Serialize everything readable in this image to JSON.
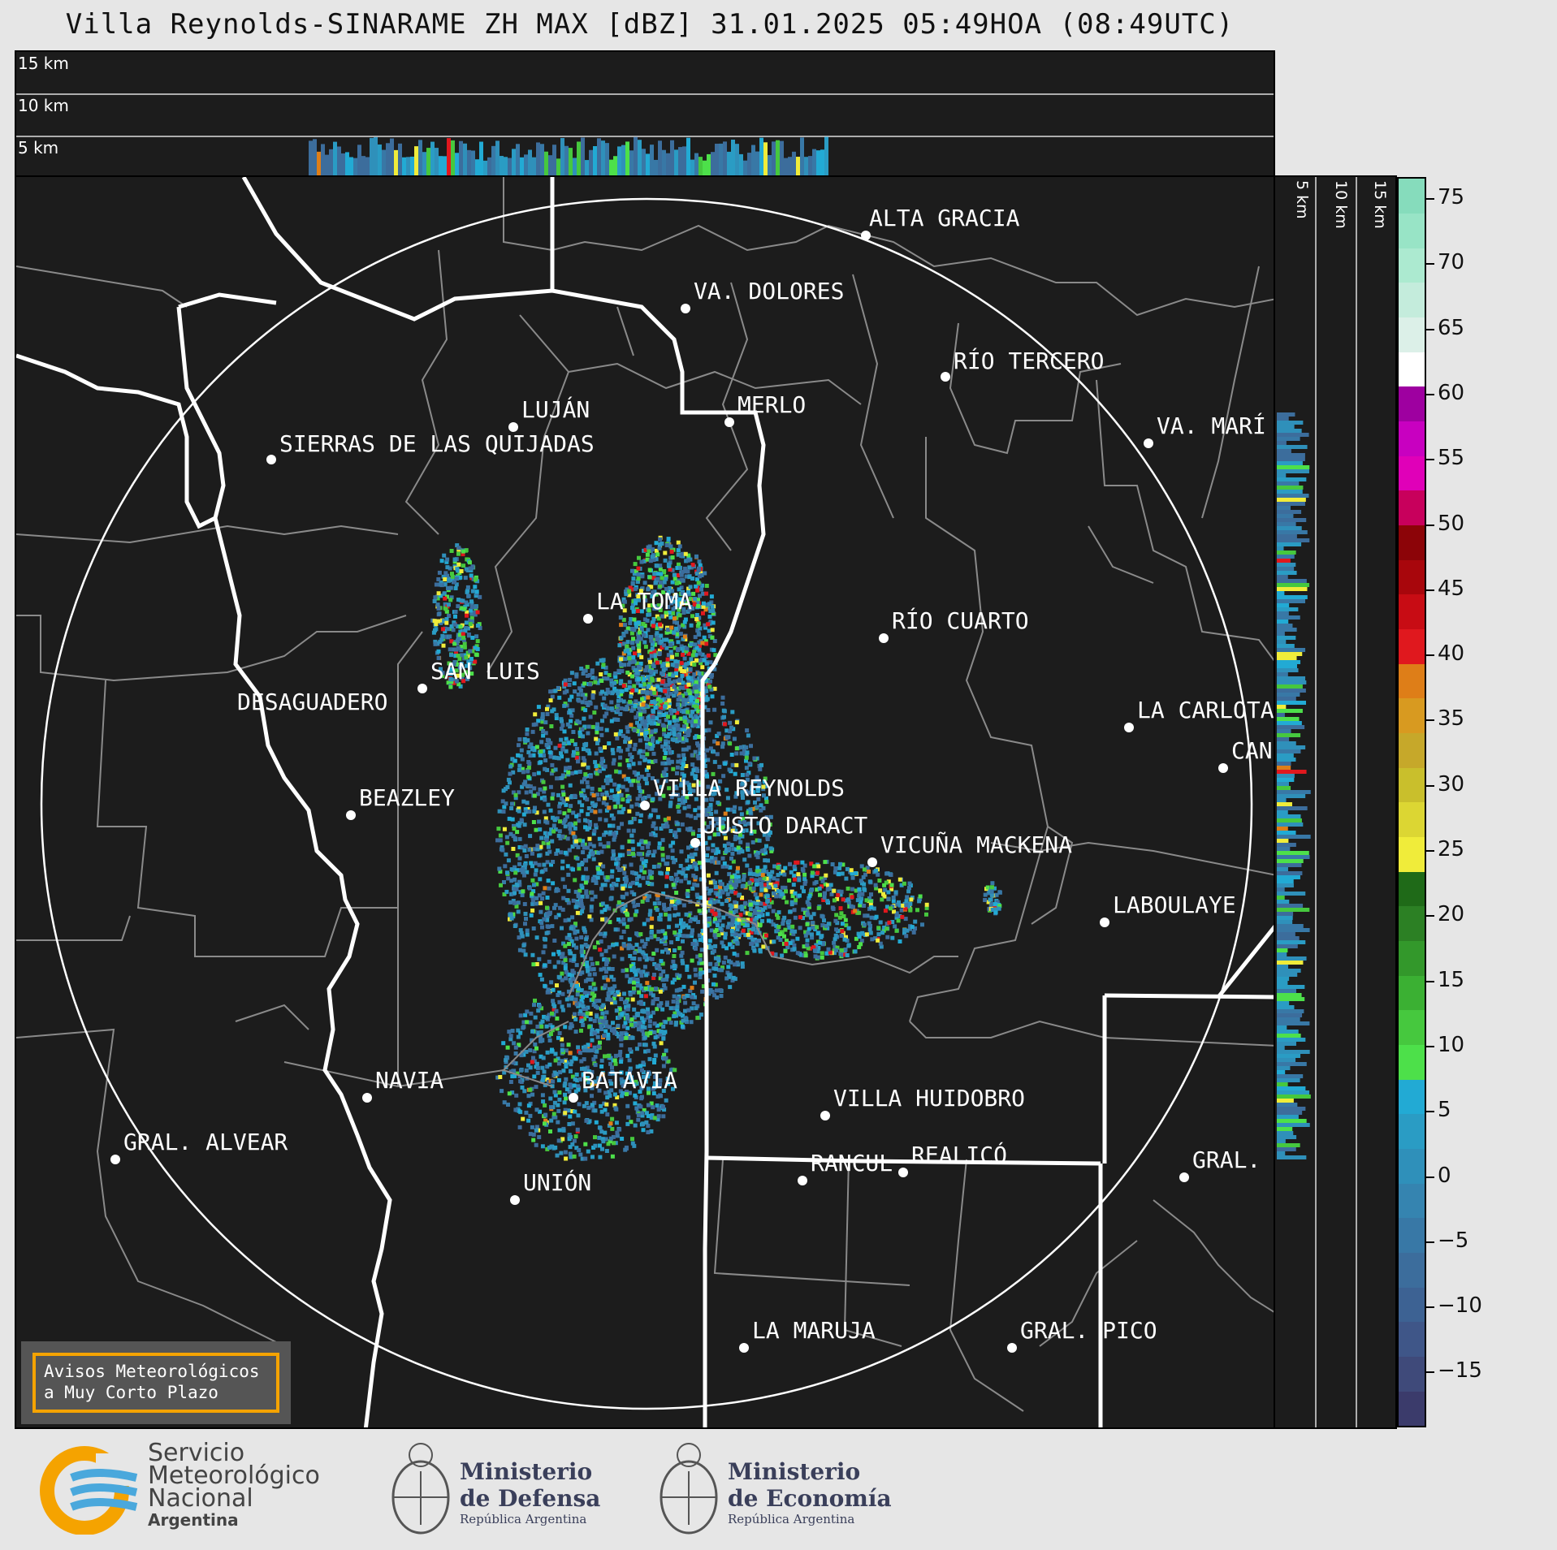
{
  "title": "Villa Reynolds-SINARAME ZH MAX [dBZ] 31.01.2025 05:49HOA (08:49UTC)",
  "altitude_labels": [
    "15 km",
    "10 km",
    "5 km"
  ],
  "side_altitude_labels": [
    "5 km",
    "10 km",
    "15 km"
  ],
  "cities": [
    {
      "name": "ALTA GRACIA"
    },
    {
      "name": "VA. DOLORES"
    },
    {
      "name": "RÍO TERCERO"
    },
    {
      "name": "LUJÁN"
    },
    {
      "name": "MERLO"
    },
    {
      "name": "SIERRAS DE LAS QUIJADAS"
    },
    {
      "name": "VA. MARÍ"
    },
    {
      "name": "LA TOMA"
    },
    {
      "name": "RÍO CUARTO"
    },
    {
      "name": "SAN LUIS"
    },
    {
      "name": "DESAGUADERO"
    },
    {
      "name": "LA CARLOTA"
    },
    {
      "name": "CAN"
    },
    {
      "name": "VILLA REYNOLDS"
    },
    {
      "name": "BEAZLEY"
    },
    {
      "name": "JUSTO DARACT"
    },
    {
      "name": "VICUÑA MACKENA"
    },
    {
      "name": "LABOULAYE"
    },
    {
      "name": "NAVIA"
    },
    {
      "name": "BATAVIA"
    },
    {
      "name": "VILLA HUIDOBRO"
    },
    {
      "name": "GRAL. ALVEAR"
    },
    {
      "name": "RANCUL"
    },
    {
      "name": "REALICÓ"
    },
    {
      "name": "GRAL."
    },
    {
      "name": "UNIÓN"
    },
    {
      "name": "LA MARUJA"
    },
    {
      "name": "GRAL. PICO"
    }
  ],
  "colorbar": {
    "ticks": [
      "75",
      "70",
      "65",
      "60",
      "55",
      "50",
      "45",
      "40",
      "35",
      "30",
      "25",
      "20",
      "15",
      "10",
      "5",
      "0",
      "−5",
      "−10",
      "−15"
    ],
    "colors": [
      "#3b3b6b",
      "#3f4a7a",
      "#3f5688",
      "#3d6293",
      "#3c6d9c",
      "#3878a6",
      "#3584b0",
      "#2f90ba",
      "#2a9cc4",
      "#22aad4",
      "#4de04a",
      "#46c83e",
      "#3bb033",
      "#33982b",
      "#2c8024",
      "#1f6a18",
      "#f0ec3a",
      "#dcd633",
      "#c9bf2c",
      "#c6a82a",
      "#d89a20",
      "#de7e18",
      "#e0181e",
      "#c80c14",
      "#a8060c",
      "#8c0408",
      "#c8005c",
      "#e000b8",
      "#c800c0",
      "#9e00a0",
      "#ffffff",
      "#dcf0e8",
      "#c4ecdc",
      "#acead0",
      "#98e4c6",
      "#86dcbc"
    ]
  },
  "warning_box": {
    "line1": "Avisos Meteorológicos",
    "line2": "a Muy Corto Plazo"
  },
  "logos": {
    "smn": {
      "line1": "Servicio",
      "line2": "Meteorológico",
      "line3": "Nacional",
      "line4": "Argentina"
    },
    "defensa": {
      "line1": "Ministerio",
      "line2": "de Defensa",
      "line3": "República Argentina"
    },
    "economia": {
      "line1": "Ministerio",
      "line2": "de Economía",
      "line3": "República Argentina"
    }
  }
}
